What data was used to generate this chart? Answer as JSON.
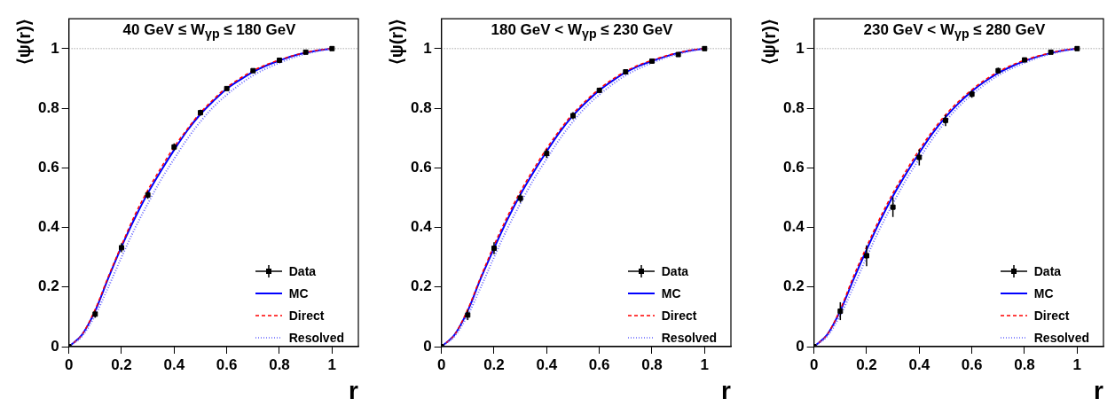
{
  "chart_data": [
    {
      "type": "line",
      "title": "40 GeV ≤ W$_{γp}$ ≤ 180 GeV",
      "xlabel": "r",
      "ylabel": "⟨ψ(r)⟩",
      "xlim": [
        0,
        1.1
      ],
      "ylim": [
        0,
        1.1
      ],
      "xticks": [
        0,
        0.2,
        0.4,
        0.6,
        0.8,
        1
      ],
      "yticks": [
        0,
        0.2,
        0.4,
        0.6,
        0.8,
        1
      ],
      "grid": false,
      "legend": "bottom right",
      "ref_lines": [
        {
          "axis": "y",
          "value": 1,
          "color": "#808080",
          "line_style": "dotted"
        }
      ],
      "series": [
        {
          "name": "Data",
          "type": "scatter",
          "marker": "square",
          "color": "#000000",
          "x": [
            0,
            0.1,
            0.2,
            0.3,
            0.4,
            0.5,
            0.6,
            0.7,
            0.8,
            0.9,
            1
          ],
          "values": [
            0,
            0.109,
            0.332,
            0.509,
            0.67,
            0.785,
            0.866,
            0.926,
            0.961,
            0.988,
            1
          ],
          "errors": [
            null,
            0.012,
            0.015,
            0.013,
            0.012,
            0.01,
            0.005,
            0.005,
            0.004,
            0.003,
            null
          ]
        },
        {
          "name": "MC",
          "type": "line",
          "color": "#0000ff",
          "line_style": "solid",
          "x": [
            0,
            0.05,
            0.1,
            0.15,
            0.2,
            0.25,
            0.3,
            0.35,
            0.4,
            0.45,
            0.5,
            0.55,
            0.6,
            0.65,
            0.7,
            0.75,
            0.8,
            0.85,
            0.9,
            0.95,
            1
          ],
          "values": [
            0,
            0.04,
            0.12,
            0.23,
            0.335,
            0.43,
            0.515,
            0.59,
            0.66,
            0.725,
            0.78,
            0.825,
            0.865,
            0.895,
            0.922,
            0.943,
            0.96,
            0.975,
            0.986,
            0.994,
            1
          ]
        },
        {
          "name": "Direct",
          "type": "line",
          "color": "#ff0000",
          "line_style": "dashed",
          "x": [
            0,
            0.05,
            0.1,
            0.15,
            0.2,
            0.25,
            0.3,
            0.35,
            0.4,
            0.45,
            0.5,
            0.55,
            0.6,
            0.65,
            0.7,
            0.75,
            0.8,
            0.85,
            0.9,
            0.95,
            1
          ],
          "values": [
            0,
            0.04,
            0.125,
            0.235,
            0.34,
            0.44,
            0.525,
            0.6,
            0.67,
            0.73,
            0.785,
            0.83,
            0.87,
            0.9,
            0.926,
            0.946,
            0.962,
            0.976,
            0.987,
            0.995,
            1
          ]
        },
        {
          "name": "Resolved",
          "type": "line",
          "color": "#6666ff",
          "line_style": "dotted",
          "x": [
            0,
            0.05,
            0.1,
            0.15,
            0.2,
            0.25,
            0.3,
            0.35,
            0.4,
            0.45,
            0.5,
            0.55,
            0.6,
            0.65,
            0.7,
            0.75,
            0.8,
            0.85,
            0.9,
            0.95,
            1
          ],
          "values": [
            0,
            0.035,
            0.105,
            0.2,
            0.3,
            0.395,
            0.48,
            0.56,
            0.63,
            0.697,
            0.755,
            0.805,
            0.845,
            0.88,
            0.91,
            0.933,
            0.952,
            0.969,
            0.982,
            0.992,
            1
          ]
        }
      ]
    },
    {
      "type": "line",
      "title": "180 GeV < W$_{γp}$ ≤ 230 GeV",
      "xlabel": "r",
      "ylabel": "⟨ψ(r)⟩",
      "xlim": [
        0,
        1.1
      ],
      "ylim": [
        0,
        1.1
      ],
      "xticks": [
        0,
        0.2,
        0.4,
        0.6,
        0.8,
        1
      ],
      "yticks": [
        0,
        0.2,
        0.4,
        0.6,
        0.8,
        1
      ],
      "grid": false,
      "legend": "bottom right",
      "ref_lines": [
        {
          "axis": "y",
          "value": 1,
          "color": "#808080",
          "line_style": "dotted"
        }
      ],
      "series": [
        {
          "name": "Data",
          "type": "scatter",
          "marker": "square",
          "color": "#000000",
          "x": [
            0,
            0.1,
            0.2,
            0.3,
            0.4,
            0.5,
            0.6,
            0.7,
            0.8,
            0.9,
            1
          ],
          "values": [
            0,
            0.106,
            0.33,
            0.498,
            0.648,
            0.775,
            0.86,
            0.922,
            0.958,
            0.98,
            1
          ],
          "errors": [
            null,
            0.017,
            0.02,
            0.015,
            0.015,
            0.012,
            0.008,
            0.005,
            0.004,
            0.003,
            null
          ]
        },
        {
          "name": "MC",
          "type": "line",
          "color": "#0000ff",
          "line_style": "solid",
          "x": [
            0,
            0.05,
            0.1,
            0.15,
            0.2,
            0.25,
            0.3,
            0.35,
            0.4,
            0.45,
            0.5,
            0.55,
            0.6,
            0.65,
            0.7,
            0.75,
            0.8,
            0.85,
            0.9,
            0.95,
            1
          ],
          "values": [
            0,
            0.04,
            0.12,
            0.23,
            0.33,
            0.425,
            0.51,
            0.585,
            0.655,
            0.72,
            0.775,
            0.82,
            0.86,
            0.892,
            0.92,
            0.942,
            0.958,
            0.973,
            0.985,
            0.994,
            1
          ]
        },
        {
          "name": "Direct",
          "type": "line",
          "color": "#ff0000",
          "line_style": "dashed",
          "x": [
            0,
            0.05,
            0.1,
            0.15,
            0.2,
            0.25,
            0.3,
            0.35,
            0.4,
            0.45,
            0.5,
            0.55,
            0.6,
            0.65,
            0.7,
            0.75,
            0.8,
            0.85,
            0.9,
            0.95,
            1
          ],
          "values": [
            0,
            0.04,
            0.125,
            0.235,
            0.34,
            0.435,
            0.52,
            0.595,
            0.665,
            0.727,
            0.782,
            0.826,
            0.865,
            0.897,
            0.924,
            0.945,
            0.961,
            0.975,
            0.986,
            0.995,
            1
          ]
        },
        {
          "name": "Resolved",
          "type": "line",
          "color": "#6666ff",
          "line_style": "dotted",
          "x": [
            0,
            0.05,
            0.1,
            0.15,
            0.2,
            0.25,
            0.3,
            0.35,
            0.4,
            0.45,
            0.5,
            0.55,
            0.6,
            0.65,
            0.7,
            0.75,
            0.8,
            0.85,
            0.9,
            0.95,
            1
          ],
          "values": [
            0,
            0.035,
            0.105,
            0.2,
            0.3,
            0.395,
            0.48,
            0.56,
            0.63,
            0.697,
            0.755,
            0.805,
            0.845,
            0.88,
            0.91,
            0.933,
            0.952,
            0.969,
            0.982,
            0.992,
            1
          ]
        }
      ]
    },
    {
      "type": "line",
      "title": "230 GeV < W$_{γp}$ ≤ 280 GeV",
      "xlabel": "r",
      "ylabel": "⟨ψ(r)⟩",
      "xlim": [
        0,
        1.1
      ],
      "ylim": [
        0,
        1.1
      ],
      "xticks": [
        0,
        0.2,
        0.4,
        0.6,
        0.8,
        1
      ],
      "yticks": [
        0,
        0.2,
        0.4,
        0.6,
        0.8,
        1
      ],
      "grid": false,
      "legend": "bottom right",
      "ref_lines": [
        {
          "axis": "y",
          "value": 1,
          "color": "#808080",
          "line_style": "dotted"
        }
      ],
      "series": [
        {
          "name": "Data",
          "type": "scatter",
          "marker": "square",
          "color": "#000000",
          "x": [
            0,
            0.1,
            0.2,
            0.3,
            0.4,
            0.5,
            0.6,
            0.7,
            0.8,
            0.9,
            1
          ],
          "values": [
            0,
            0.119,
            0.305,
            0.468,
            0.635,
            0.759,
            0.847,
            0.926,
            0.962,
            0.988,
            1
          ],
          "errors": [
            null,
            0.03,
            0.035,
            0.033,
            0.027,
            0.019,
            0.012,
            0.01,
            0.005,
            0.003,
            null
          ]
        },
        {
          "name": "MC",
          "type": "line",
          "color": "#0000ff",
          "line_style": "solid",
          "x": [
            0,
            0.05,
            0.1,
            0.15,
            0.2,
            0.25,
            0.3,
            0.35,
            0.4,
            0.45,
            0.5,
            0.55,
            0.6,
            0.65,
            0.7,
            0.75,
            0.8,
            0.85,
            0.9,
            0.95,
            1
          ],
          "values": [
            0,
            0.04,
            0.12,
            0.225,
            0.325,
            0.42,
            0.505,
            0.58,
            0.65,
            0.715,
            0.77,
            0.817,
            0.857,
            0.89,
            0.918,
            0.94,
            0.958,
            0.973,
            0.985,
            0.994,
            1
          ]
        },
        {
          "name": "Direct",
          "type": "line",
          "color": "#ff0000",
          "line_style": "dashed",
          "x": [
            0,
            0.05,
            0.1,
            0.15,
            0.2,
            0.25,
            0.3,
            0.35,
            0.4,
            0.45,
            0.5,
            0.55,
            0.6,
            0.65,
            0.7,
            0.75,
            0.8,
            0.85,
            0.9,
            0.95,
            1
          ],
          "values": [
            0,
            0.04,
            0.125,
            0.235,
            0.335,
            0.43,
            0.515,
            0.59,
            0.66,
            0.723,
            0.778,
            0.823,
            0.862,
            0.895,
            0.922,
            0.944,
            0.961,
            0.975,
            0.986,
            0.995,
            1
          ]
        },
        {
          "name": "Resolved",
          "type": "line",
          "color": "#6666ff",
          "line_style": "dotted",
          "x": [
            0,
            0.05,
            0.1,
            0.15,
            0.2,
            0.25,
            0.3,
            0.35,
            0.4,
            0.45,
            0.5,
            0.55,
            0.6,
            0.65,
            0.7,
            0.75,
            0.8,
            0.85,
            0.9,
            0.95,
            1
          ],
          "values": [
            0,
            0.035,
            0.105,
            0.2,
            0.3,
            0.395,
            0.48,
            0.56,
            0.63,
            0.697,
            0.755,
            0.805,
            0.845,
            0.88,
            0.91,
            0.933,
            0.952,
            0.969,
            0.982,
            0.992,
            1
          ]
        }
      ]
    }
  ]
}
